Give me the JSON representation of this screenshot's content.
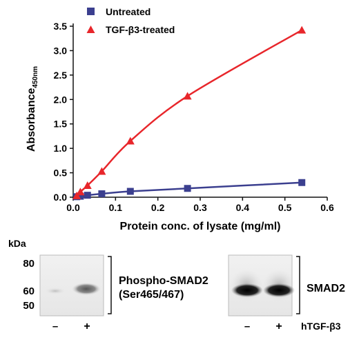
{
  "chart_data": {
    "type": "line",
    "title": "",
    "xlabel": "Protein conc. of lysate (mg/ml)",
    "ylabel": "Absorbance",
    "ylabel_subscript": "450nm",
    "xlim": [
      0,
      0.6
    ],
    "ylim": [
      0,
      3.5
    ],
    "x_ticks": [
      "0.0",
      "0.1",
      "0.2",
      "0.3",
      "0.4",
      "0.5",
      "0.6"
    ],
    "y_ticks": [
      "0.0",
      "0.5",
      "1.0",
      "1.5",
      "2.0",
      "2.5",
      "3.0",
      "3.5"
    ],
    "x_tick_values": [
      0,
      0.1,
      0.2,
      0.3,
      0.4,
      0.5,
      0.6
    ],
    "y_tick_values": [
      0,
      0.5,
      1.0,
      1.5,
      2.0,
      2.5,
      3.0,
      3.5
    ],
    "grid": false,
    "legend_position": "top-left",
    "series": [
      {
        "name": "Untreated",
        "marker": "square",
        "color": "#3b3f8f",
        "x": [
          0.0084,
          0.0169,
          0.0338,
          0.0675,
          0.135,
          0.27,
          0.54
        ],
        "y": [
          0.01,
          0.02,
          0.04,
          0.07,
          0.12,
          0.18,
          0.3
        ]
      },
      {
        "name": "TGF-β3-treated",
        "marker": "triangle",
        "color": "#e8262b",
        "x": [
          0.0084,
          0.0169,
          0.0338,
          0.0675,
          0.135,
          0.27,
          0.54
        ],
        "y": [
          0.03,
          0.11,
          0.24,
          0.53,
          1.15,
          2.07,
          3.42
        ]
      }
    ]
  },
  "blot": {
    "kda_label": "kDa",
    "markers": [
      "80",
      "60",
      "50"
    ],
    "phospho_label_line1": "Phospho-SMAD2",
    "phospho_label_line2": "(Ser465/467)",
    "smad2_label": "SMAD2",
    "lane_minus": "–",
    "lane_plus": "+",
    "treatment_label": "hTGF-β3"
  }
}
